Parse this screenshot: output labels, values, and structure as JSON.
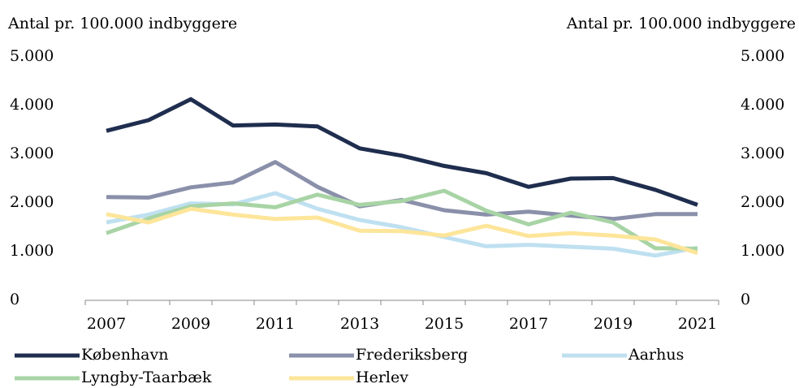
{
  "chart_data": {
    "type": "line",
    "y_label": "Antal pr. 100.000 indbyggere",
    "y2_label": "Antal pr. 100.000 indbyggere",
    "x": [
      2007,
      2008,
      2009,
      2010,
      2011,
      2012,
      2013,
      2014,
      2015,
      2016,
      2017,
      2018,
      2019,
      2020,
      2021
    ],
    "xlim": [
      2006.5,
      2021.5
    ],
    "xticks": [
      2007,
      2009,
      2011,
      2013,
      2015,
      2017,
      2019,
      2021
    ],
    "ylim": [
      0,
      5000
    ],
    "yticks": [
      0,
      {
        "value": 1000,
        "label": "1.000"
      },
      {
        "value": 2000,
        "label": "2.000"
      },
      {
        "value": 3000,
        "label": "3.000"
      },
      {
        "value": 4000,
        "label": "4.000"
      },
      {
        "value": 5000,
        "label": "5.000"
      }
    ],
    "y2lim": [
      0,
      5000
    ],
    "y2ticks": [
      0,
      {
        "value": 1000,
        "label": "1.000"
      },
      {
        "value": 2000,
        "label": "2.000"
      },
      {
        "value": 3000,
        "label": "3.000"
      },
      {
        "value": 4000,
        "label": "4.000"
      },
      {
        "value": 5000,
        "label": "5.000"
      }
    ],
    "series": [
      {
        "name": "København",
        "color": "#1f2d4e",
        "values": [
          3480,
          3700,
          4130,
          3590,
          3610,
          3570,
          3120,
          2970,
          2760,
          2610,
          2330,
          2500,
          2510,
          2270,
          1960
        ]
      },
      {
        "name": "Frederiksberg",
        "color": "#8a90aa",
        "values": [
          2120,
          2110,
          2320,
          2420,
          2840,
          2330,
          1930,
          2060,
          1850,
          1760,
          1820,
          1740,
          1670,
          1770,
          1770
        ]
      },
      {
        "name": "Aarhus",
        "color": "#bfe0f0",
        "values": [
          1600,
          1760,
          1990,
          1970,
          2200,
          1880,
          1650,
          1500,
          1300,
          1110,
          1140,
          1100,
          1060,
          920,
          1080
        ]
      },
      {
        "name": "Lyngby-Taarbæk",
        "color": "#a8d4a5",
        "values": [
          1380,
          1680,
          1930,
          1990,
          1910,
          2170,
          1960,
          2040,
          2250,
          1840,
          1560,
          1800,
          1600,
          1070,
          1060
        ]
      },
      {
        "name": "Herlev",
        "color": "#fde59a",
        "values": [
          1770,
          1600,
          1880,
          1760,
          1670,
          1700,
          1430,
          1420,
          1330,
          1530,
          1320,
          1380,
          1330,
          1250,
          970
        ]
      }
    ]
  }
}
